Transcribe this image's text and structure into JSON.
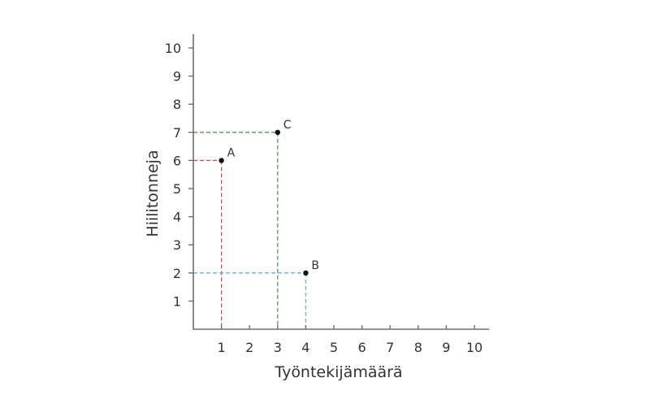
{
  "chart_data": {
    "type": "scatter",
    "title": "",
    "xlabel": "Työntekijämäärä",
    "ylabel": "Hiilitonneja",
    "xlim": [
      0,
      10.5
    ],
    "ylim": [
      0,
      10.5
    ],
    "x_ticks": [
      1,
      2,
      3,
      4,
      5,
      6,
      7,
      8,
      9,
      10
    ],
    "y_ticks": [
      1,
      2,
      3,
      4,
      5,
      6,
      7,
      8,
      9,
      10
    ],
    "grid": false,
    "legend": null,
    "points": [
      {
        "label": "A",
        "x": 1,
        "y": 6,
        "guide_color": "#d0503a"
      },
      {
        "label": "C",
        "x": 3,
        "y": 7,
        "guide_color": "#4f9a4f"
      },
      {
        "label": "B",
        "x": 4,
        "y": 2,
        "guide_color": "#5fb0dc"
      }
    ]
  },
  "colors": {
    "axis": "#6e6e6e",
    "point": "#111111",
    "text": "#333333"
  }
}
